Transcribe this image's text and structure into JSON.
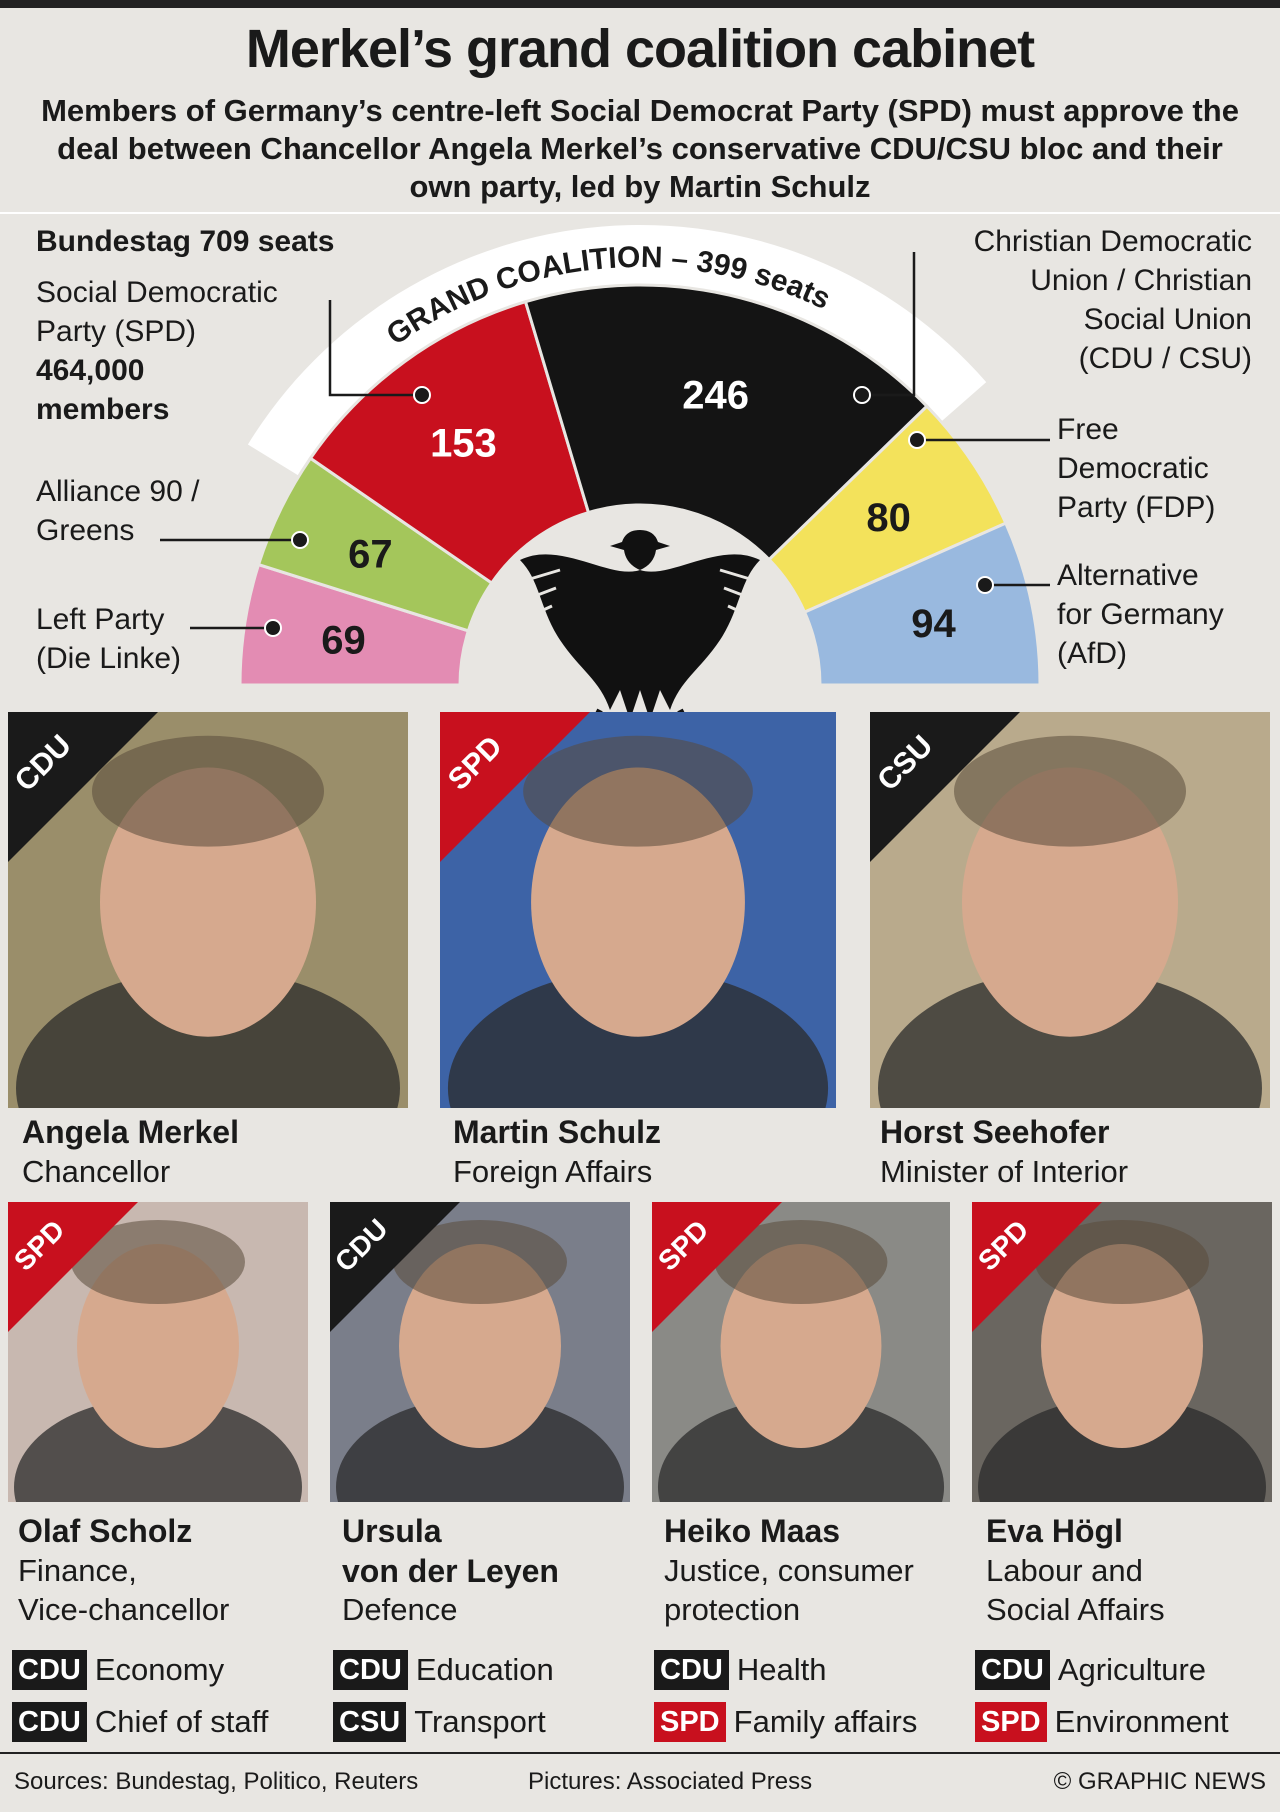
{
  "title": "Merkel’s grand coalition cabinet",
  "subtitle": "Members of Germany’s centre-left Social Democrat Party (SPD) must approve the deal between Chancellor Angela Merkel’s conservative CDU/CSU bloc and their own party, led by Martin Schulz",
  "chart_data": {
    "type": "pie",
    "title": "Bundestag 709 seats",
    "arc_label": "GRAND COALITION – 399 seats",
    "total": 709,
    "parties": [
      {
        "name": "Left Party (Die Linke)",
        "seats": 69,
        "color": "#e38cb3",
        "text_color": "#1a1a1a"
      },
      {
        "name": "Alliance 90 / Greens",
        "seats": 67,
        "color": "#a4c65b",
        "text_color": "#1a1a1a"
      },
      {
        "name": "Social Democratic Party (SPD)",
        "seats": 153,
        "color": "#c8101e",
        "text_color": "#ffffff"
      },
      {
        "name": "Christian Democratic Union / Christian Social Union (CDU / CSU)",
        "seats": 246,
        "color": "#141414",
        "text_color": "#ffffff"
      },
      {
        "name": "Free Democratic Party (FDP)",
        "seats": 80,
        "color": "#f3e25b",
        "text_color": "#1a1a1a"
      },
      {
        "name": "Alternative for Germany (AfD)",
        "seats": 94,
        "color": "#99b9df",
        "text_color": "#1a1a1a"
      }
    ]
  },
  "labels": {
    "bundestag": "Bundestag 709 seats",
    "spd_line1": "Social Democratic",
    "spd_line2": "Party (SPD)",
    "spd_members1": "464,000",
    "spd_members2": "members",
    "greens_line1": "Alliance 90 /",
    "greens_line2": "Greens",
    "left_line1": "Left Party",
    "left_line2": "(Die Linke)",
    "cdu_line1": "Christian Democratic",
    "cdu_line2": "Union / Christian",
    "cdu_line3": "Social Union",
    "cdu_line4": "(CDU / CSU)",
    "fdp_line1": "Free",
    "fdp_line2": "Democratic",
    "fdp_line3": "Party (FDP)",
    "afd_line1": "Alternative",
    "afd_line2": "for Germany",
    "afd_line3": "(AfD)"
  },
  "colors": {
    "CDU": "#1a1a1a",
    "CSU": "#1a1a1a",
    "SPD": "#c8101e"
  },
  "big_cards": [
    {
      "party": "CDU",
      "name_lines": [
        "Angela Merkel"
      ],
      "role_lines": [
        "Chancellor"
      ],
      "bg": "#9a8e6a"
    },
    {
      "party": "SPD",
      "name_lines": [
        "Martin Schulz"
      ],
      "role_lines": [
        "Foreign Affairs"
      ],
      "bg": "#3d63a6"
    },
    {
      "party": "CSU",
      "name_lines": [
        "Horst Seehofer"
      ],
      "role_lines": [
        "Minister of Interior"
      ],
      "bg": "#b9aa8c"
    }
  ],
  "small_cards": [
    {
      "party": "SPD",
      "name_lines": [
        "Olaf Scholz"
      ],
      "role_lines": [
        "Finance,",
        "Vice-chancellor"
      ],
      "bg": "#c8b8b0"
    },
    {
      "party": "CDU",
      "name_lines": [
        "Ursula",
        "von der Leyen"
      ],
      "role_lines": [
        "Defence"
      ],
      "bg": "#7a7e8a"
    },
    {
      "party": "SPD",
      "name_lines": [
        "Heiko Maas"
      ],
      "role_lines": [
        "Justice, consumer",
        "protection"
      ],
      "bg": "#8a8a86"
    },
    {
      "party": "SPD",
      "name_lines": [
        "Eva Högl"
      ],
      "role_lines": [
        "Labour and",
        "Social Affairs"
      ],
      "bg": "#6a6660"
    }
  ],
  "ministries": [
    [
      {
        "party": "CDU",
        "label": "Economy"
      },
      {
        "party": "CDU",
        "label": "Chief of staff"
      }
    ],
    [
      {
        "party": "CDU",
        "label": "Education"
      },
      {
        "party": "CSU",
        "label": "Transport"
      }
    ],
    [
      {
        "party": "CDU",
        "label": "Health"
      },
      {
        "party": "SPD",
        "label": "Family affairs"
      }
    ],
    [
      {
        "party": "CDU",
        "label": "Agriculture"
      },
      {
        "party": "SPD",
        "label": "Environment"
      }
    ]
  ],
  "footer": {
    "sources": "Sources: Bundestag, Politico, Reuters",
    "pictures": "Pictures: Associated Press",
    "credit": "© GRAPHIC NEWS"
  }
}
